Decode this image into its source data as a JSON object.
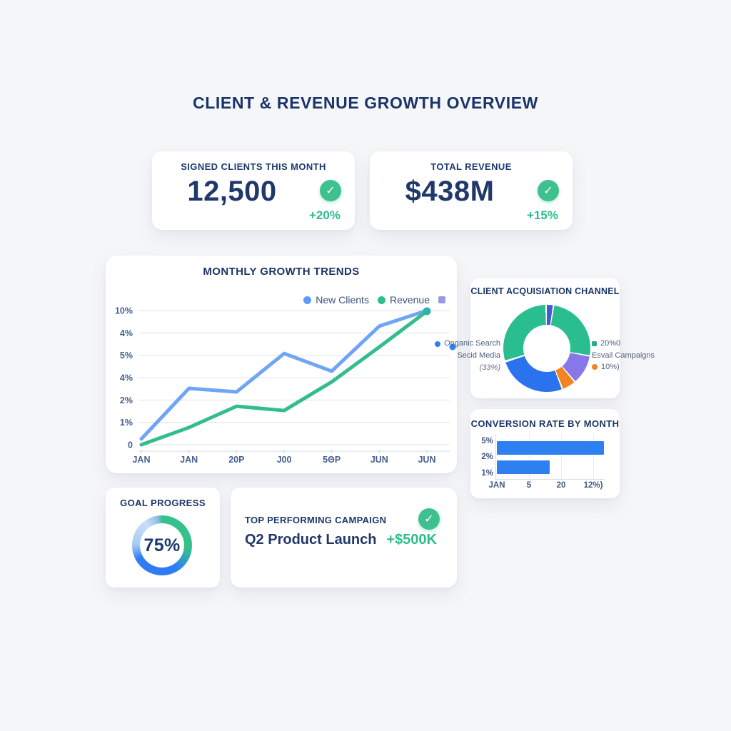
{
  "page_title": "CLIENT & REVENUE GROWTH OVERVIEW",
  "icons": {
    "check": "✓"
  },
  "colors": {
    "navy": "#1D3A6E",
    "accent_green": "#2EBD8A",
    "bar_blue": "#2E7FF0",
    "check_bg": "#3EC18F"
  },
  "kpis": [
    {
      "label": "SIGNED CLIENTS THIS MONTH",
      "value": "12,500",
      "delta": "+20%"
    },
    {
      "label": "TOTAL REVENUE",
      "value": "$438M",
      "delta": "+15%"
    }
  ],
  "campaign": {
    "label": "TOP PERFORMING CAMPAIGN",
    "name": "Q2 Product Launch",
    "delta": "+$500K"
  },
  "donut_legend": {
    "left": [
      {
        "marker": "blue-dot",
        "text": "Onganic Search"
      },
      {
        "marker": "",
        "text": "Secid Media"
      },
      {
        "marker": "",
        "text": "(33%)"
      }
    ],
    "right": [
      {
        "marker": "teal-square",
        "text": "20%0"
      },
      {
        "marker": "",
        "text": "Esvail Campaigns"
      },
      {
        "marker": "orange-dot",
        "text": "10%)"
      }
    ]
  },
  "chart_data": [
    {
      "type": "line",
      "title": "MONTHLY GROWTH TRENDS",
      "x_ticks": [
        "JAN",
        "JAN",
        "20P",
        "J00",
        "5ΘP",
        "JUN",
        "JUN"
      ],
      "y_ticks_top_to_bottom": [
        "10%",
        "4%",
        "5%",
        "4%",
        "2%",
        "1%",
        "0"
      ],
      "legend": [
        {
          "label": "New Clients",
          "color": "#5B9CF8",
          "shape": "circle"
        },
        {
          "label": "Revenue",
          "color": "#2EBD8C",
          "shape": "circle"
        },
        {
          "label": "",
          "color": "#9B99E1",
          "shape": "square"
        }
      ],
      "series": [
        {
          "name": "New Clients",
          "color": "#6FA5F6",
          "values_grid_units": [
            0.26,
            2.52,
            2.36,
            4.08,
            3.29,
            5.3,
            6.0
          ]
        },
        {
          "name": "Revenue",
          "color": "#34BD8C",
          "values_grid_units": [
            0.0,
            0.77,
            1.72,
            1.53,
            2.81,
            4.37,
            5.97
          ]
        }
      ],
      "grid": true,
      "legend_position": "top-right",
      "end_marker_color": "#2BB4A9",
      "stray_dot_color": "#2E7FF0"
    },
    {
      "type": "pie",
      "title": "CLIENT ACQUISIATION CHANNEL",
      "donut": true,
      "segments": [
        {
          "name": "navy-sliver",
          "color": "#4757DA",
          "from_deg": 0,
          "to_deg": 8
        },
        {
          "name": "teal",
          "color": "#2ABD8E",
          "from_deg": 10,
          "to_deg": 99
        },
        {
          "name": "purple",
          "color": "#8877E9",
          "from_deg": 101,
          "to_deg": 139
        },
        {
          "name": "orange",
          "color": "#F5831F",
          "from_deg": 141,
          "to_deg": 158
        },
        {
          "name": "blue",
          "color": "#2B72EE",
          "from_deg": 160,
          "to_deg": 251
        },
        {
          "name": "teal-2",
          "color": "#2ABD8E",
          "from_deg": 254,
          "to_deg": 358
        }
      ],
      "labels_visible": [
        "Onganic Search",
        "Secid Media",
        "(33%)",
        "20%0",
        "Esvail Campaigns",
        "10%)"
      ]
    },
    {
      "type": "bar",
      "title": "CONVERSION RATE BY MONTH",
      "orientation": "horizontal",
      "y_ticks": [
        "5%",
        "2%",
        "1%"
      ],
      "x_ticks": [
        "JAN",
        "5",
        "20",
        "12%)"
      ],
      "bars": [
        {
          "width_frac": 0.99
        },
        {
          "width_frac": 0.49
        }
      ],
      "bar_color": "#2E7FF0",
      "grid": true
    },
    {
      "type": "pie",
      "subtype": "progress-ring",
      "title": "GOAL PROGRESS",
      "value": "75%",
      "ring_stops": [
        {
          "color": "#35C18C",
          "at_deg": 6
        },
        {
          "color": "#35C18C",
          "at_deg": 96
        },
        {
          "color": "#2F7BF6",
          "at_deg": 150
        },
        {
          "color": "#2F7BF6",
          "at_deg": 240
        },
        {
          "color": "#A9CBF2",
          "at_deg": 272
        },
        {
          "color": "#CBDFF8",
          "at_deg": 325
        },
        {
          "color": "#8FBCEC",
          "at_deg": 350
        },
        {
          "color": "#35C18C",
          "at_deg": 360
        }
      ]
    }
  ]
}
